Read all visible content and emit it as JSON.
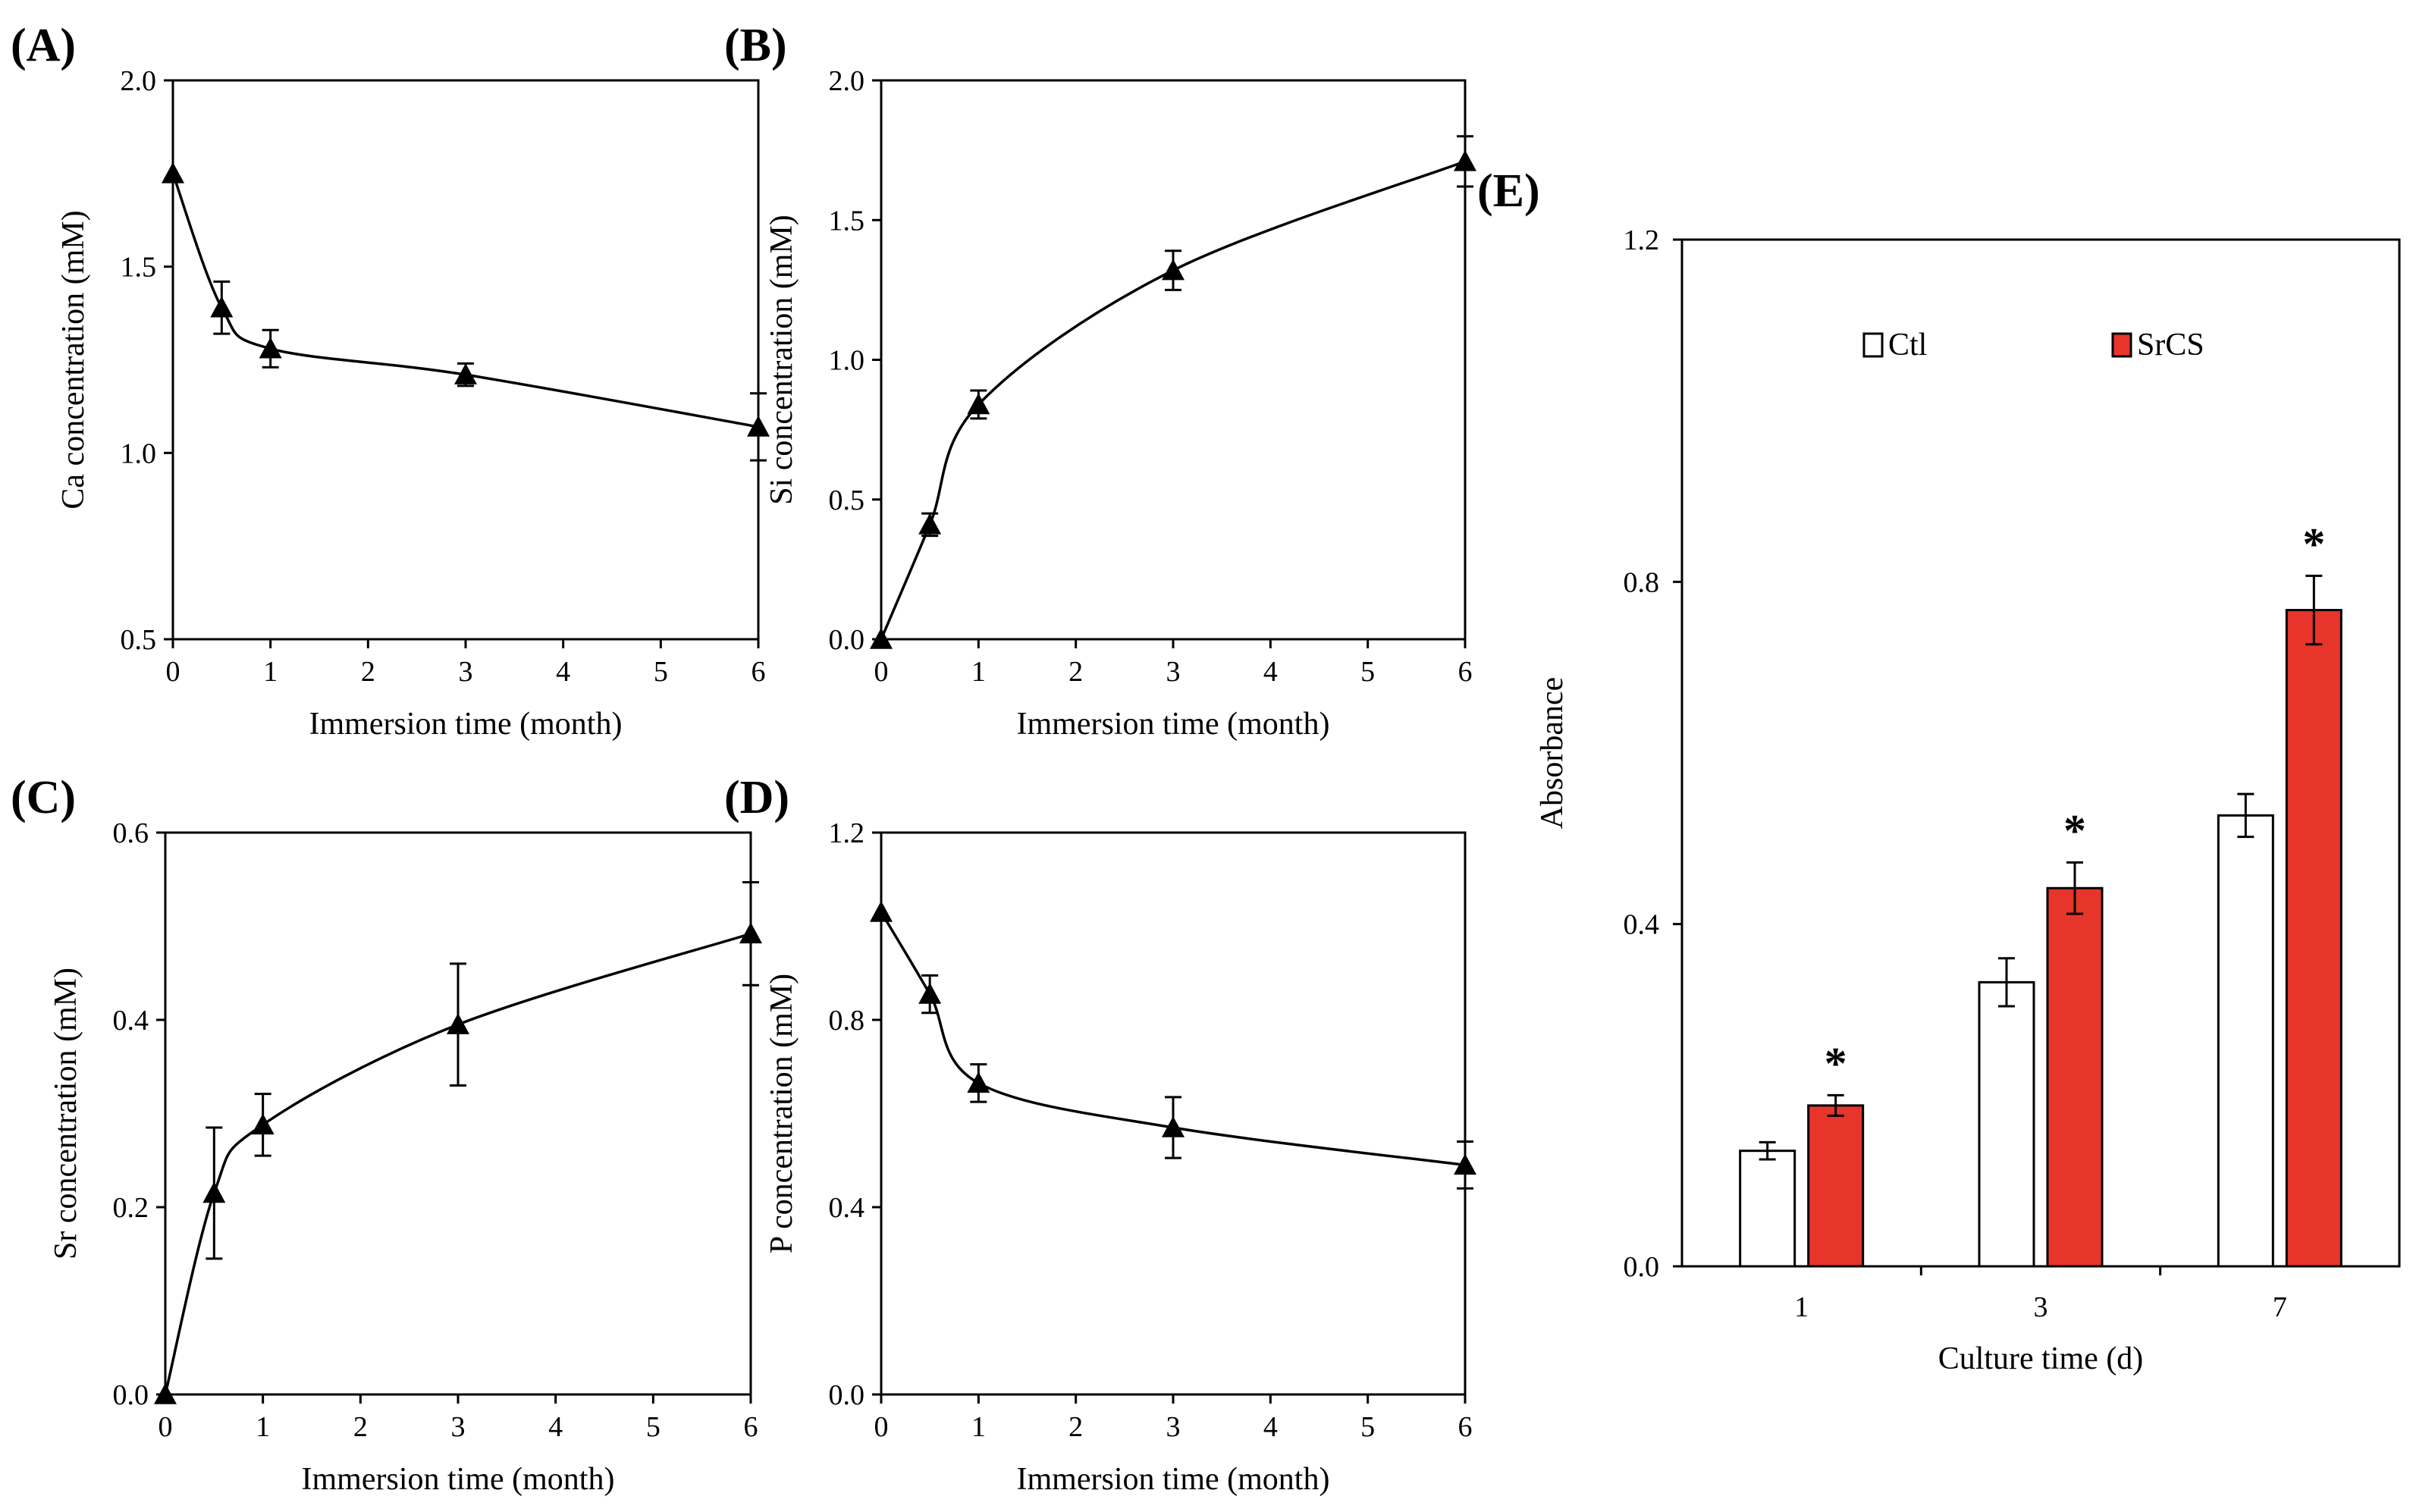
{
  "chart_data": [
    {
      "id": "A",
      "type": "line",
      "panel_label": "(A)",
      "xlabel": "Immersion time (month)",
      "ylabel": "Ca concentration (mM)",
      "xlim": [
        0,
        6
      ],
      "ylim": [
        0.5,
        2.0
      ],
      "xticks": [
        "0",
        "1",
        "2",
        "3",
        "4",
        "5",
        "6"
      ],
      "yticks": [
        "0.5",
        "1.0",
        "1.5",
        "2.0"
      ],
      "x": [
        0,
        0.5,
        1,
        3,
        6
      ],
      "y": [
        1.75,
        1.39,
        1.28,
        1.21,
        1.07
      ],
      "err": [
        0,
        0.07,
        0.05,
        0.03,
        0.09
      ],
      "marker": "triangle"
    },
    {
      "id": "B",
      "type": "line",
      "panel_label": "(B)",
      "xlabel": "Immersion time (month)",
      "ylabel": "Si concentration (mM)",
      "xlim": [
        0,
        6
      ],
      "ylim": [
        0,
        2.0
      ],
      "xticks": [
        "0",
        "1",
        "2",
        "3",
        "4",
        "5",
        "6"
      ],
      "yticks": [
        "0.0",
        "0.5",
        "1.0",
        "1.5",
        "2.0"
      ],
      "x": [
        0,
        0.5,
        1,
        3,
        6
      ],
      "y": [
        0,
        0.41,
        0.84,
        1.32,
        1.71
      ],
      "err": [
        0,
        0.04,
        0.05,
        0.07,
        0.09
      ],
      "marker": "triangle"
    },
    {
      "id": "C",
      "type": "line",
      "panel_label": "(C)",
      "xlabel": "Immersion time (month)",
      "ylabel": "Sr concentration (mM)",
      "xlim": [
        0,
        6
      ],
      "ylim": [
        0,
        0.6
      ],
      "xticks": [
        "0",
        "1",
        "2",
        "3",
        "4",
        "5",
        "6"
      ],
      "yticks": [
        "0.0",
        "0.2",
        "0.4",
        "0.6"
      ],
      "x": [
        0,
        0.5,
        1,
        3,
        6
      ],
      "y": [
        0,
        0.215,
        0.288,
        0.395,
        0.492
      ],
      "err": [
        0,
        0.07,
        0.033,
        0.065,
        0.055
      ],
      "marker": "triangle"
    },
    {
      "id": "D",
      "type": "line",
      "panel_label": "(D)",
      "xlabel": "Immersion time (month)",
      "ylabel": "P concentration (mM)",
      "xlim": [
        0,
        6
      ],
      "ylim": [
        0,
        1.2
      ],
      "xticks": [
        "0",
        "1",
        "2",
        "3",
        "4",
        "5",
        "6"
      ],
      "yticks": [
        "0.0",
        "0.4",
        "0.8",
        "1.2"
      ],
      "x": [
        0,
        0.5,
        1,
        3,
        6
      ],
      "y": [
        1.03,
        0.855,
        0.665,
        0.57,
        0.49
      ],
      "err": [
        0,
        0.04,
        0.04,
        0.065,
        0.05
      ],
      "marker": "triangle"
    },
    {
      "id": "E",
      "type": "bar",
      "panel_label": "(E)",
      "xlabel": "Culture time (d)",
      "ylabel": "Absorbance",
      "ylim": [
        0,
        1.2
      ],
      "yticks": [
        "0.0",
        "0.4",
        "0.8",
        "1.2"
      ],
      "categories": [
        "1",
        "3",
        "7"
      ],
      "series": [
        {
          "name": "Ctl",
          "color": "#ffffff",
          "values": [
            0.135,
            0.332,
            0.527
          ],
          "err": [
            0.01,
            0.028,
            0.025
          ]
        },
        {
          "name": "SrCS",
          "color": "#e8352b",
          "values": [
            0.188,
            0.442,
            0.767
          ],
          "err": [
            0.012,
            0.03,
            0.04
          ]
        }
      ],
      "significance": [
        "*",
        "*",
        "*"
      ]
    }
  ]
}
